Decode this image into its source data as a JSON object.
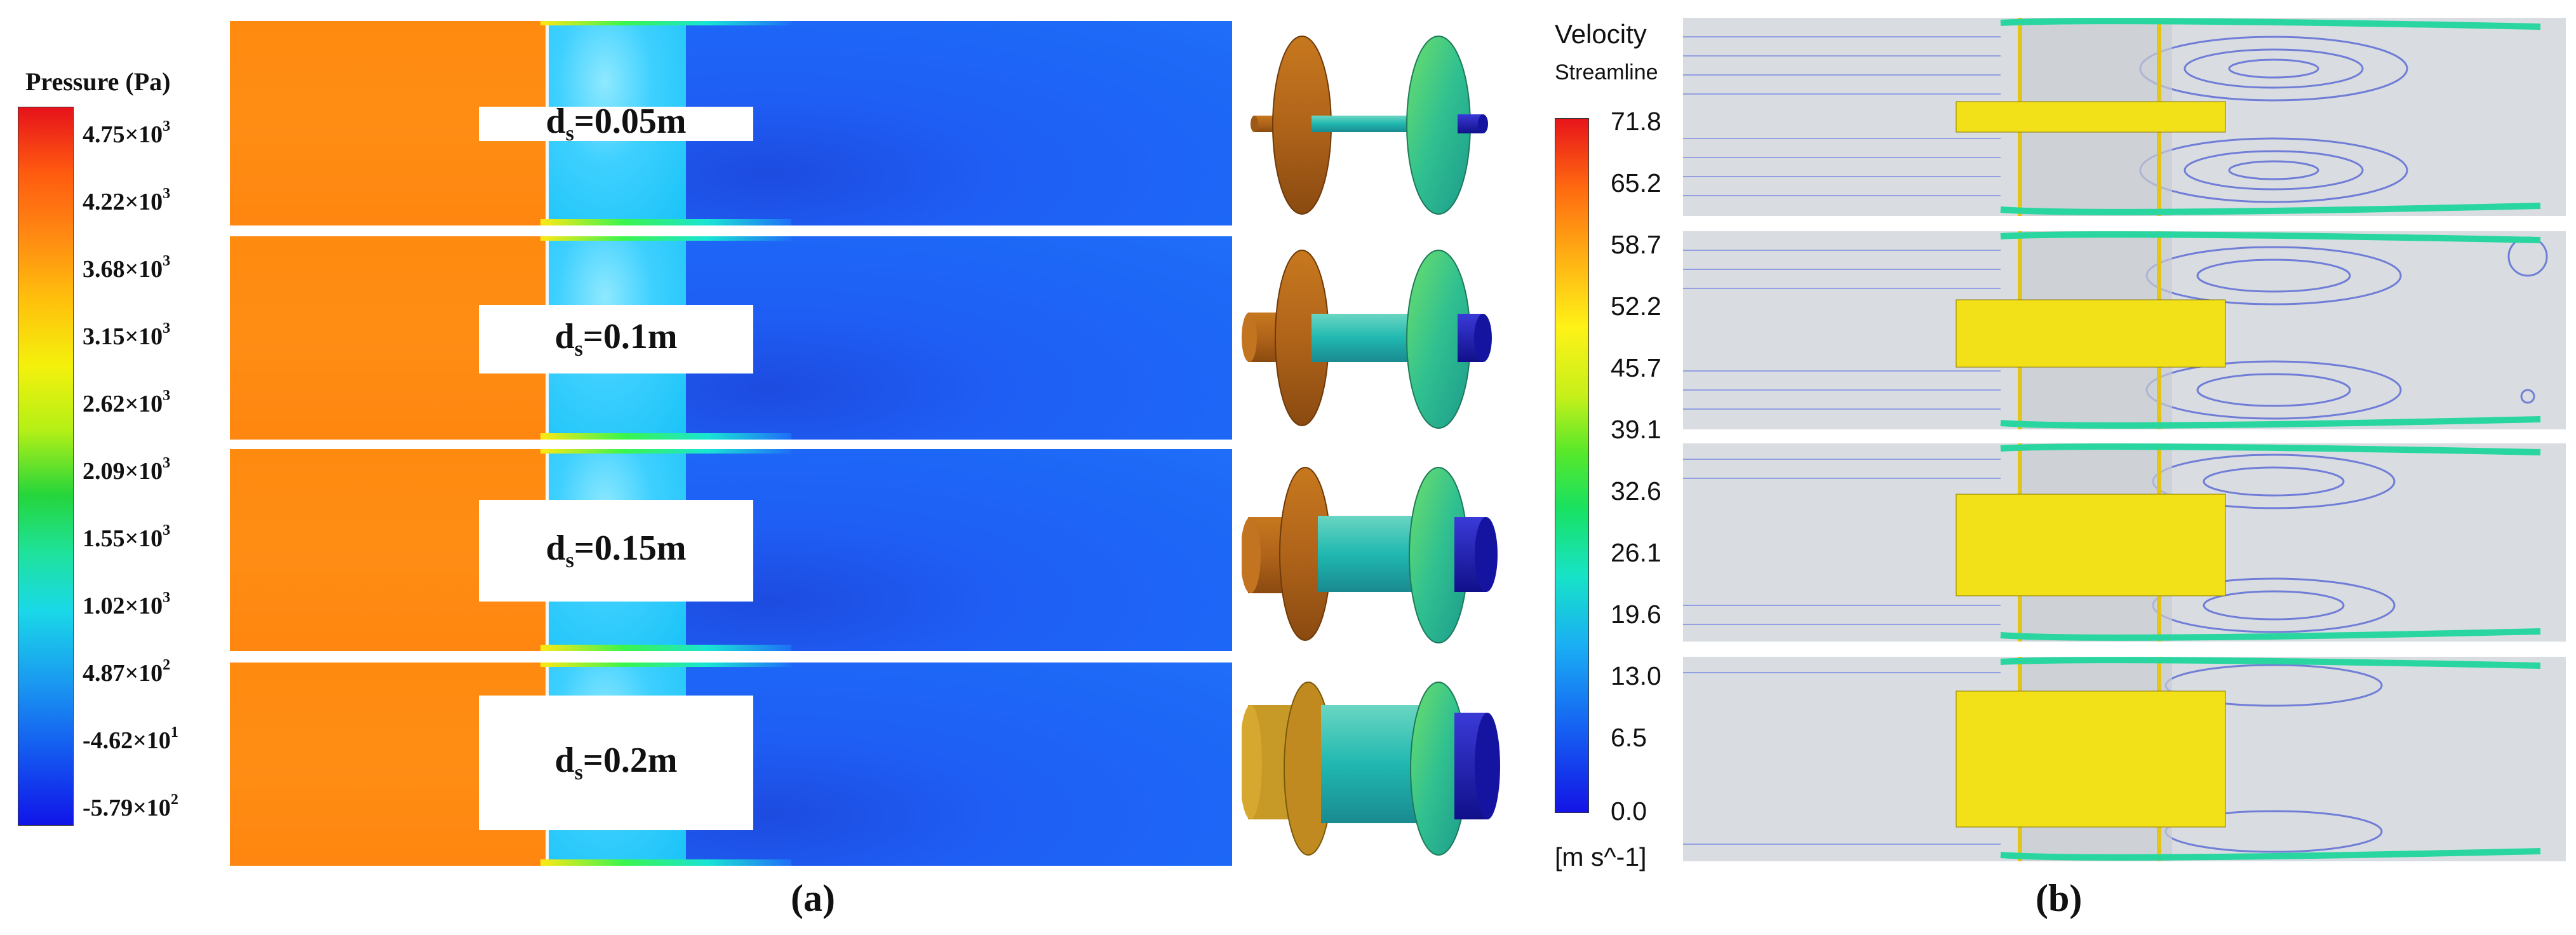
{
  "panel_a": {
    "legend": {
      "title": "Pressure (Pa)",
      "ticks": [
        {
          "mant": "4.75×10",
          "exp": "3"
        },
        {
          "mant": "4.22×10",
          "exp": "3"
        },
        {
          "mant": "3.68×10",
          "exp": "3"
        },
        {
          "mant": "3.15×10",
          "exp": "3"
        },
        {
          "mant": "2.62×10",
          "exp": "3"
        },
        {
          "mant": "2.09×10",
          "exp": "3"
        },
        {
          "mant": "1.55×10",
          "exp": "3"
        },
        {
          "mant": "1.02×10",
          "exp": "3"
        },
        {
          "mant": "4.87×10",
          "exp": "2"
        },
        {
          "mant": "-4.62×10",
          "exp": "1"
        },
        {
          "mant": "-5.79×10",
          "exp": "2"
        }
      ]
    },
    "cases": [
      {
        "prefix": "d",
        "sub": "s",
        "value": "=0.05m"
      },
      {
        "prefix": "d",
        "sub": "s",
        "value": "=0.1m"
      },
      {
        "prefix": "d",
        "sub": "s",
        "value": "=0.15m"
      },
      {
        "prefix": "d",
        "sub": "s",
        "value": "=0.2m"
      }
    ],
    "caption": "(a)"
  },
  "panel_b": {
    "legend": {
      "title": "Velocity",
      "subtitle": "Streamline",
      "ticks": [
        "71.8",
        "65.2",
        "58.7",
        "52.2",
        "45.7",
        "39.1",
        "32.6",
        "26.1",
        "19.6",
        "13.0",
        "6.5",
        "0.0"
      ],
      "unit": "[m s^-1]"
    },
    "caption": "(b)"
  }
}
